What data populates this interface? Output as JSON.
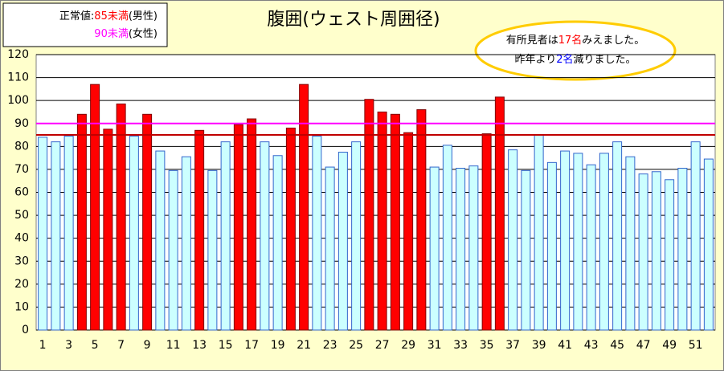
{
  "chart_data": {
    "type": "bar",
    "title": "腹囲(ウェスト周囲径)",
    "legend_box": [
      [
        {
          "text": "正常値:",
          "color": "#000000"
        },
        {
          "text": "85未満",
          "color": "#ff0000"
        },
        {
          "text": "(男性)",
          "color": "#000000"
        }
      ],
      [
        {
          "text": "90未満",
          "color": "#ff00ff"
        },
        {
          "text": "(女性)",
          "color": "#000000"
        }
      ]
    ],
    "annotation": [
      [
        {
          "text": "有所見者は",
          "color": "#000000"
        },
        {
          "text": "17名",
          "color": "#ff0000"
        },
        {
          "text": "みえました。",
          "color": "#000000"
        }
      ],
      [
        {
          "text": "昨年より",
          "color": "#000000"
        },
        {
          "text": "2名",
          "color": "#0000ff"
        },
        {
          "text": "減りました。",
          "color": "#000000"
        }
      ]
    ],
    "categories": [
      "1",
      null,
      "3",
      null,
      "5",
      null,
      "7",
      null,
      "9",
      null,
      "11",
      null,
      "13",
      null,
      "15",
      null,
      "17",
      null,
      "19",
      null,
      "21",
      null,
      "23",
      null,
      "25",
      null,
      "27",
      null,
      "29",
      null,
      "31",
      null,
      "33",
      null,
      "35",
      null,
      "37",
      null,
      "39",
      null,
      "41",
      null,
      "43",
      null,
      "45",
      null,
      "47",
      null,
      "49",
      null,
      "51",
      null
    ],
    "values": [
      84,
      82,
      84.5,
      94,
      107,
      87.5,
      98.5,
      84.5,
      94,
      78,
      69.5,
      75.5,
      87,
      69.5,
      82,
      89.5,
      92,
      82,
      76,
      88,
      107,
      84.5,
      71,
      77.5,
      82,
      100.5,
      95,
      94,
      86,
      96,
      71,
      80.5,
      70.5,
      71.5,
      85.5,
      101.5,
      78.5,
      69.5,
      85,
      73,
      78,
      77,
      72,
      77,
      82,
      75.5,
      68,
      69,
      65.5,
      70.5,
      82,
      74.5
    ],
    "colors": [
      "#ccffff",
      "#ccffff",
      "#ccffff",
      "#ff0000",
      "#ff0000",
      "#ff0000",
      "#ff0000",
      "#ccffff",
      "#ff0000",
      "#ccffff",
      "#ccffff",
      "#ccffff",
      "#ff0000",
      "#ccffff",
      "#ccffff",
      "#ff0000",
      "#ff0000",
      "#ccffff",
      "#ccffff",
      "#ff0000",
      "#ff0000",
      "#ccffff",
      "#ccffff",
      "#ccffff",
      "#ccffff",
      "#ff0000",
      "#ff0000",
      "#ff0000",
      "#ff0000",
      "#ff0000",
      "#ccffff",
      "#ccffff",
      "#ccffff",
      "#ccffff",
      "#ff0000",
      "#ff0000",
      "#ccffff",
      "#ccffff",
      "#ccffff",
      "#ccffff",
      "#ccffff",
      "#ccffff",
      "#ccffff",
      "#ccffff",
      "#ccffff",
      "#ccffff",
      "#ccffff",
      "#ccffff",
      "#ccffff",
      "#ccffff",
      "#ccffff",
      "#ccffff"
    ],
    "reference_lines": [
      {
        "value": 85,
        "color": "#c00000"
      },
      {
        "value": 90,
        "color": "#ff00ff"
      }
    ],
    "ylim": [
      0,
      120
    ],
    "yticks": [
      0,
      10,
      20,
      30,
      40,
      50,
      60,
      70,
      80,
      90,
      100,
      110,
      120
    ],
    "grid": true
  }
}
